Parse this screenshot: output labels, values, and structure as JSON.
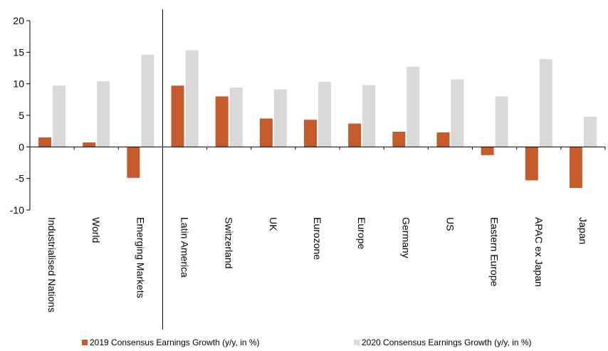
{
  "chart_data": {
    "type": "bar",
    "categories": [
      "Industrialised Nations",
      "World",
      "Emerging Markets",
      "Latin America",
      "Switzerland",
      "UK",
      "Eurozone",
      "Europe",
      "Germany",
      "US",
      "Eastern Europe",
      "APAC ex Japan",
      "Japan"
    ],
    "series": [
      {
        "name": "2019 Consensus Earnings Growth (y/y, in %)",
        "color": "#c55a2b",
        "values": [
          1.5,
          0.7,
          -4.9,
          9.7,
          8.0,
          4.5,
          4.3,
          3.7,
          2.4,
          2.3,
          -1.3,
          -5.3,
          -6.5
        ]
      },
      {
        "name": "2020 Consensus Earnings Growth (y/y, in %)",
        "color": "#d9d9d9",
        "values": [
          9.7,
          10.4,
          14.6,
          15.3,
          9.4,
          9.1,
          10.3,
          9.8,
          12.7,
          10.7,
          8.0,
          13.9,
          4.8
        ]
      }
    ],
    "yticks": [
      -10,
      -5,
      0,
      5,
      10,
      15,
      20
    ],
    "ylim": [
      -10,
      20
    ],
    "separator_after_index": 2,
    "grid": false,
    "legend_position": "bottom"
  }
}
